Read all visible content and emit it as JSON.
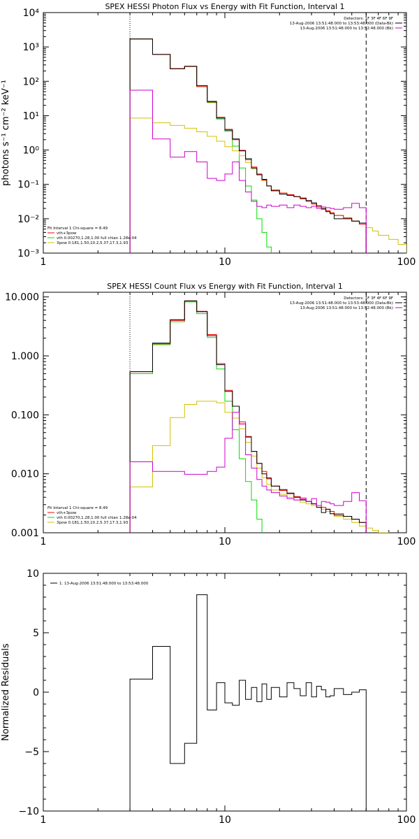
{
  "colors": {
    "total": "#000000",
    "model": "#ff0000",
    "vth": "#00dd00",
    "pow": "#d4c000",
    "bk": "#cc00cc",
    "thr": "#000000"
  },
  "chart_data": [
    {
      "type": "line",
      "title": "SPEX HESSI Photon Flux vs Energy with Fit Function, Interval 1",
      "xlabel": "",
      "ylabel": "photons s⁻¹ cm⁻² keV⁻¹",
      "xscale": "log",
      "yscale": "log",
      "xlim": [
        1,
        100
      ],
      "ylim": [
        0.001,
        10000
      ],
      "xticks": [
        {
          "v": 1,
          "label": "1"
        },
        {
          "v": 10,
          "label": "10"
        },
        {
          "v": 100,
          "label": "100"
        }
      ],
      "yticks": [
        {
          "v": 0.001,
          "label": "10⁻³"
        },
        {
          "v": 0.01,
          "label": "10⁻²"
        },
        {
          "v": 0.1,
          "label": "10⁻¹"
        },
        {
          "v": 1,
          "label": "10⁰"
        },
        {
          "v": 10,
          "label": "10¹"
        },
        {
          "v": 100,
          "label": "10²"
        },
        {
          "v": 1000,
          "label": "10³"
        },
        {
          "v": 10000,
          "label": "10⁴"
        }
      ],
      "vlines": [
        {
          "x": 3.0,
          "style": "dotted"
        },
        {
          "x": 60.0,
          "style": "dashed"
        }
      ],
      "legend_top_right": [
        {
          "text": "Detectors: 1F 3F 4F 6F 9F",
          "color": ""
        },
        {
          "text": "13-Aug-2006 13:51:48.000 to 13:53:48.000 (Data-Bk)",
          "color": "#000000"
        },
        {
          "text": "13-Aug-2006 13:51:48.000 to 13:52:48.000 (Bk)",
          "color": "#cc00cc"
        }
      ],
      "legend_bottom_left": [
        {
          "text": "Fit Interval 1   Chi-square = 8.49",
          "color": ""
        },
        {
          "text": "vth+3pow",
          "color": "#ff0000"
        },
        {
          "text": "vth 0.00270,1.28,1.00  full chian 1.28e-04",
          "color": "#00dd00"
        },
        {
          "text": "3pow 0.181,1.50,10.2,5.37,17.3,1.93",
          "color": "#d4c000"
        }
      ],
      "edges": [
        3.0,
        4.0,
        5.0,
        6.0,
        7.0,
        8.0,
        9.0,
        10.0,
        11.0,
        12.0,
        13.0,
        14.0,
        15.0,
        16.0,
        17.0,
        18.0,
        20.0,
        22.0,
        24.0,
        26.0,
        28.0,
        30.0,
        32.0,
        34.0,
        36.0,
        38.0,
        40.0,
        45.0,
        50.0,
        55.0,
        60.0,
        65.0,
        70.0,
        80.0,
        90.0,
        100.0
      ],
      "series": [
        {
          "name": "",
          "key": "vth",
          "start": 0,
          "values": [
            1700,
            600,
            230,
            270,
            70,
            24,
            8,
            3.5,
            1.3,
            0.3,
            0.09,
            0.035,
            0.01,
            0.004,
            0.0015,
            0.0005
          ]
        },
        {
          "name": "",
          "key": "pow",
          "start": 0,
          "values": [
            8.5,
            6.2,
            5.2,
            4.3,
            3.4,
            2.5,
            1.8,
            1.25,
            0.95,
            0.68,
            0.43,
            0.28,
            0.19,
            0.13,
            0.09,
            0.068,
            0.056,
            0.05,
            0.044,
            0.038,
            0.032,
            0.027,
            0.022,
            0.019,
            0.017,
            0.015,
            0.0125,
            0.0105,
            0.0085,
            0.007,
            0.0055,
            0.0044,
            0.0033,
            0.0025,
            0.0018
          ]
        },
        {
          "name": "",
          "key": "model",
          "start": 0,
          "values": [
            1700,
            600,
            230,
            270,
            70,
            25,
            9,
            4,
            2,
            0.98,
            0.52,
            0.32,
            0.2,
            0.134,
            0.091,
            0.068,
            0.056,
            0.05,
            0.044,
            0.038,
            0.032,
            0.027,
            0.022,
            0.019,
            0.017,
            0.015,
            0.0125,
            0.0105,
            0.0085,
            0.007
          ]
        },
        {
          "name": "",
          "key": "total",
          "start": 0,
          "values": [
            1700,
            610,
            235,
            275,
            75,
            26,
            8.5,
            3.8,
            2.1,
            0.95,
            0.56,
            0.3,
            0.19,
            0.14,
            0.09,
            0.065,
            0.052,
            0.048,
            0.044,
            0.04,
            0.034,
            0.029,
            0.024,
            0.02,
            0.016,
            0.014,
            0.01,
            0.01,
            0.0085,
            0.0075
          ]
        },
        {
          "name": "",
          "key": "bk",
          "start": 0,
          "values": [
            55,
            2.1,
            0.62,
            0.9,
            0.45,
            0.15,
            0.13,
            0.2,
            0.45,
            0.13,
            0.06,
            0.032,
            0.023,
            0.021,
            0.025,
            0.023,
            0.025,
            0.021,
            0.025,
            0.023,
            0.021,
            0.023,
            0.02,
            0.022,
            0.021,
            0.02,
            0.019,
            0.021,
            0.028,
            0.021
          ]
        }
      ]
    },
    {
      "type": "line",
      "title": "SPEX HESSI Count Flux vs Energy with Fit Function, Interval 1",
      "xlabel": "",
      "ylabel": "",
      "xscale": "log",
      "yscale": "log",
      "xlim": [
        1,
        100
      ],
      "ylim": [
        0.001,
        12
      ],
      "xticks": [
        {
          "v": 1,
          "label": "1"
        },
        {
          "v": 10,
          "label": "10"
        },
        {
          "v": 100,
          "label": "100"
        }
      ],
      "yticks": [
        {
          "v": 0.001,
          "label": "0.001"
        },
        {
          "v": 0.01,
          "label": "0.010"
        },
        {
          "v": 0.1,
          "label": "0.100"
        },
        {
          "v": 1,
          "label": "1.000"
        },
        {
          "v": 10,
          "label": "10.000"
        }
      ],
      "vlines": [
        {
          "x": 3.0,
          "style": "dotted"
        },
        {
          "x": 60.0,
          "style": "dashed"
        }
      ],
      "legend_top_right": [
        {
          "text": "Detectors: 1F 3F 4F 6F 9F",
          "color": ""
        },
        {
          "text": "13-Aug-2006 13:51:48.000 to 13:53:48.000 (Data-Bk)",
          "color": "#000000"
        },
        {
          "text": "13-Aug-2006 13:51:48.000 to 13:52:48.000 (Bk)",
          "color": "#cc00cc"
        }
      ],
      "legend_bottom_left": [
        {
          "text": "Fit Interval 1   Chi-square = 8.49",
          "color": ""
        },
        {
          "text": "vth+3pow",
          "color": "#ff0000"
        },
        {
          "text": "vth 0.00270,1.28,1.00  full chian 1.28e-04",
          "color": "#00dd00"
        },
        {
          "text": "3pow 0.181,1.50,10.2,5.37,17.3,1.93",
          "color": "#d4c000"
        }
      ],
      "edges": [
        3.0,
        4.0,
        5.0,
        6.0,
        7.0,
        8.0,
        9.0,
        10.0,
        11.0,
        12.0,
        13.0,
        14.0,
        15.0,
        16.0,
        17.0,
        18.0,
        20.0,
        22.0,
        24.0,
        26.0,
        28.0,
        30.0,
        32.0,
        34.0,
        36.0,
        38.0,
        40.0,
        45.0,
        50.0,
        55.0,
        60.0,
        65.0,
        70.0,
        80.0,
        90.0,
        100.0
      ],
      "series": [
        {
          "name": "",
          "key": "vth",
          "start": 0,
          "values": [
            0.5,
            1.55,
            3.8,
            8.2,
            5.2,
            2.05,
            0.6,
            0.17,
            0.056,
            0.018,
            0.0074,
            0.0036,
            0.0017,
            0.0009
          ]
        },
        {
          "name": "",
          "key": "pow",
          "start": 0,
          "values": [
            0.006,
            0.03,
            0.09,
            0.15,
            0.17,
            0.17,
            0.16,
            0.11,
            0.088,
            0.058,
            0.034,
            0.02,
            0.0125,
            0.0086,
            0.0066,
            0.0053,
            0.0045,
            0.004,
            0.0036,
            0.0033,
            0.0031,
            0.0029,
            0.0027,
            0.0025,
            0.0023,
            0.0021,
            0.0019,
            0.0017,
            0.0015,
            0.0013,
            0.0012,
            0.0011,
            0.001
          ]
        },
        {
          "name": "",
          "key": "model",
          "start": 0,
          "values": [
            0.54,
            1.6,
            4.0,
            8.5,
            5.7,
            2.3,
            0.74,
            0.26,
            0.14,
            0.076,
            0.043,
            0.024,
            0.015,
            0.011,
            0.0082,
            0.0062,
            0.0052,
            0.0046,
            0.0041,
            0.0037,
            0.0034,
            0.0031,
            0.0029,
            0.0027,
            0.0025,
            0.0023,
            0.0021,
            0.0019,
            0.0017,
            0.0015
          ]
        },
        {
          "name": "",
          "key": "total",
          "start": 0,
          "values": [
            0.54,
            1.65,
            4.1,
            8.6,
            5.6,
            2.2,
            0.71,
            0.25,
            0.14,
            0.07,
            0.042,
            0.024,
            0.015,
            0.01,
            0.0085,
            0.0062,
            0.0054,
            0.0047,
            0.004,
            0.0036,
            0.0034,
            0.0031,
            0.0027,
            0.0022,
            0.0025,
            0.0021,
            0.002,
            0.0019,
            0.0017,
            0.0015
          ]
        },
        {
          "name": "",
          "key": "bk",
          "start": 0,
          "values": [
            0.016,
            0.011,
            0.011,
            0.0098,
            0.0098,
            0.011,
            0.013,
            0.04,
            0.11,
            0.07,
            0.021,
            0.0125,
            0.008,
            0.0062,
            0.0053,
            0.0048,
            0.0042,
            0.0038,
            0.0036,
            0.0039,
            0.0034,
            0.0038,
            0.0029,
            0.0034,
            0.0033,
            0.0031,
            0.0029,
            0.0034,
            0.0048,
            0.0035
          ]
        }
      ]
    },
    {
      "type": "line",
      "title": "",
      "xlabel": "",
      "ylabel": "Normalized Residuals",
      "xscale": "log",
      "yscale": "linear",
      "xlim": [
        1,
        100
      ],
      "ylim": [
        -10,
        10
      ],
      "xticks": [
        {
          "v": 1,
          "label": "1"
        },
        {
          "v": 10,
          "label": "10"
        },
        {
          "v": 100,
          "label": "100"
        }
      ],
      "yticks": [
        {
          "v": -10,
          "label": "−10"
        },
        {
          "v": -5,
          "label": "−5"
        },
        {
          "v": 0,
          "label": "0"
        },
        {
          "v": 5,
          "label": "5"
        },
        {
          "v": 10,
          "label": "10"
        }
      ],
      "vlines": [],
      "legend_top_left": [
        {
          "text": "1. 13-Aug-2006 13:51:48.000 to 13:53:48.000",
          "color": "#000000"
        }
      ],
      "edges": [
        3.0,
        4.0,
        5.0,
        6.0,
        7.0,
        8.0,
        9.0,
        10.0,
        11.0,
        12.0,
        13.0,
        14.0,
        15.0,
        16.0,
        17.0,
        18.0,
        20.0,
        22.0,
        24.0,
        26.0,
        28.0,
        30.0,
        32.0,
        34.0,
        36.0,
        38.0,
        40.0,
        45.0,
        50.0,
        55.0,
        60.0
      ],
      "series": [
        {
          "name": "",
          "key": "total",
          "start": 0,
          "values": [
            1.1,
            3.85,
            -6.0,
            -4.3,
            8.2,
            -1.5,
            0.8,
            -0.9,
            -1.1,
            1.0,
            -0.6,
            0.4,
            -0.8,
            0.7,
            -0.6,
            0.4,
            -0.4,
            0.8,
            0.3,
            -0.3,
            0.8,
            -0.4,
            0.5,
            0.2,
            -0.4,
            -0.3,
            0.3,
            -0.2,
            0.0,
            0.2
          ]
        }
      ]
    }
  ]
}
